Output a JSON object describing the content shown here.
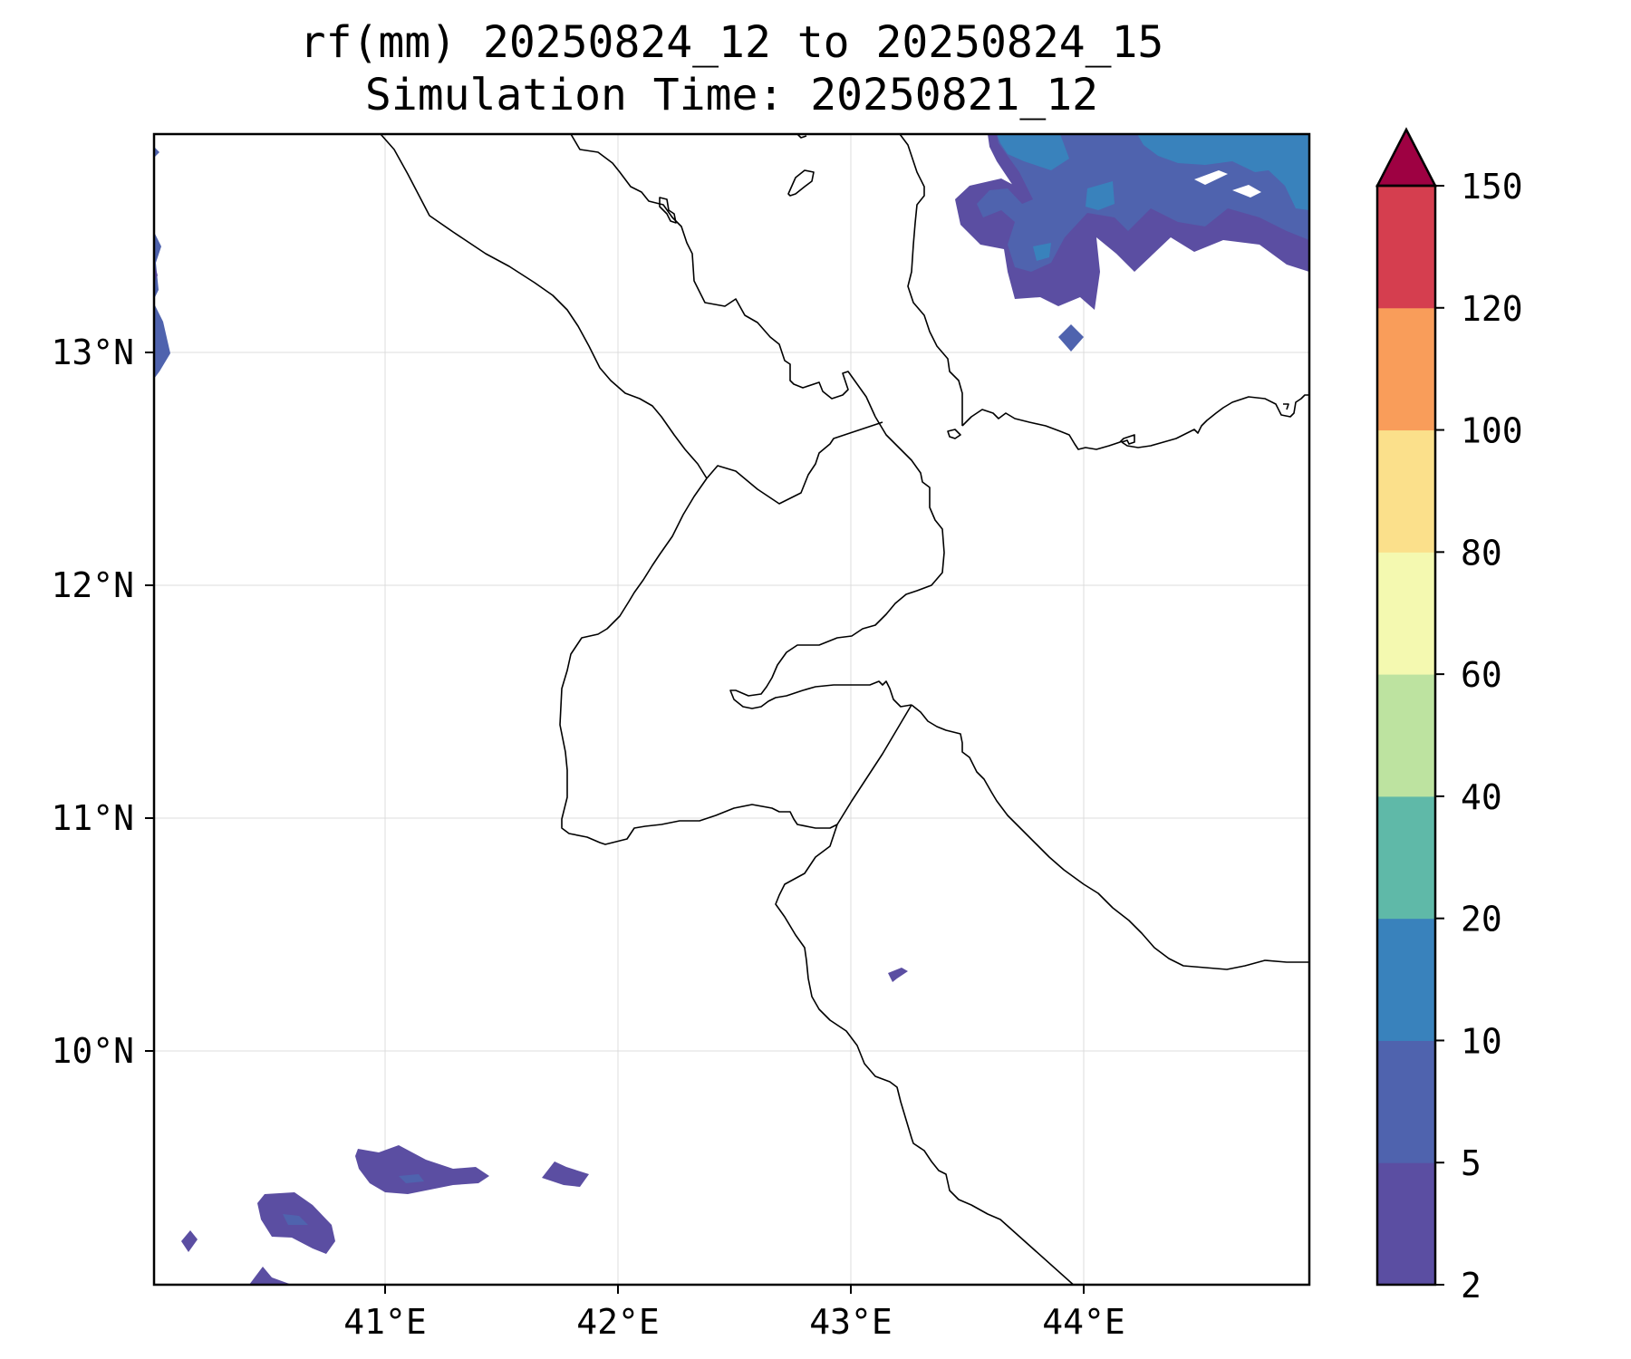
{
  "title": {
    "line1": "rf(mm) 20250824_12 to 20250824_15",
    "line2": "Simulation Time: 20250821_12"
  },
  "map": {
    "lon_range": [
      40,
      45
    ],
    "lat_range": [
      9,
      13.95
    ],
    "x_ticks": [
      "41°E",
      "42°E",
      "43°E",
      "44°E"
    ],
    "y_ticks": [
      "13°N",
      "12°N",
      "11°N",
      "10°N"
    ],
    "gridlines": true
  },
  "colorbar": {
    "levels": [
      "2",
      "5",
      "10",
      "20",
      "40",
      "60",
      "80",
      "100",
      "120",
      "150"
    ],
    "colors": [
      "#5b4ea2",
      "#4f63ae",
      "#3982bc",
      "#5fb9a8",
      "#bde3a0",
      "#f4f9b0",
      "#fbe08b",
      "#f99d5a",
      "#d53e4f",
      "#9e0142"
    ],
    "extend": "max",
    "overflow_color": "#9e0142"
  },
  "chart_data": {
    "type": "map-filled-contour",
    "variable": "rf(mm)",
    "levels": [
      2,
      5,
      10,
      20,
      40,
      60,
      80,
      100,
      120,
      150
    ],
    "x_range": [
      40,
      45
    ],
    "y_range": [
      9,
      13.95
    ]
  }
}
